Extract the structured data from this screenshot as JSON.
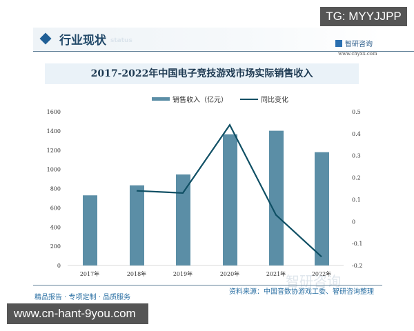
{
  "header": {
    "section_title": "行业现状",
    "ghost_text": "status",
    "brand_name": "智研咨询",
    "brand_url": "www.chyxx.com"
  },
  "watermark_top": "TG: MYYJJPP",
  "watermark_bottom": "www.cn-hant-9you.com",
  "footer": {
    "tagline": "精品报告 · 专项定制 · 品质服务",
    "source": "资料来源：中国音数协游戏工委、智研咨询整理",
    "ghost_brand": "智研咨询"
  },
  "chart_data": {
    "type": "bar",
    "title": "2017-2022年中国电子竞技游戏市场实际销售收入",
    "categories": [
      "2017年",
      "2018年",
      "2019年",
      "2020年",
      "2021年",
      "2022年"
    ],
    "series": [
      {
        "name": "销售收入（亿元）",
        "type": "bar",
        "axis": "left",
        "color": "#5b8ea6",
        "values": [
          730,
          834,
          947,
          1365,
          1402,
          1179
        ]
      },
      {
        "name": "同比变化",
        "type": "line",
        "axis": "right",
        "color": "#0f4f64",
        "values": [
          null,
          0.14,
          0.13,
          0.44,
          0.03,
          -0.16
        ]
      }
    ],
    "left_axis": {
      "ticks": [
        "0",
        "200",
        "400",
        "600",
        "800",
        "1000",
        "1200",
        "1400",
        "1600"
      ],
      "ylim": [
        0,
        1600
      ]
    },
    "right_axis": {
      "ticks": [
        "-0.2",
        "-0.1",
        "0",
        "0.1",
        "0.2",
        "0.3",
        "0.4",
        "0.5"
      ],
      "ylim": [
        -0.2,
        0.5
      ]
    },
    "legend_position": "top",
    "grid": false,
    "xlabel": "",
    "ylabel": ""
  }
}
